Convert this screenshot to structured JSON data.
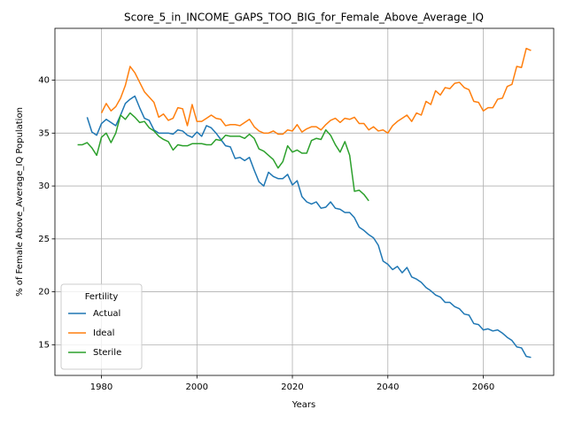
{
  "chart_data": {
    "type": "line",
    "title": "Score_5_in_INCOME_GAPS_TOO_BIG_for_Female_Above_Average_IQ",
    "x_label": "Years",
    "y_label": "% of Female Above_Average_IQ Population",
    "x": [
      1975,
      1976,
      1977,
      1978,
      1979,
      1980,
      1981,
      1982,
      1983,
      1984,
      1985,
      1986,
      1987,
      1988,
      1989,
      1990,
      1991,
      1992,
      1993,
      1994,
      1995,
      1996,
      1997,
      1998,
      1999,
      2000,
      2001,
      2002,
      2003,
      2004,
      2005,
      2006,
      2007,
      2008,
      2009,
      2010,
      2011,
      2012,
      2013,
      2014,
      2015,
      2016,
      2017,
      2018,
      2019,
      2020,
      2021,
      2022,
      2023,
      2024,
      2025,
      2026,
      2027,
      2028,
      2029,
      2030,
      2031,
      2032,
      2033,
      2034,
      2035,
      2036,
      2037,
      2038,
      2039,
      2040,
      2041,
      2042,
      2043,
      2044,
      2045,
      2046,
      2047,
      2048,
      2049,
      2050,
      2051,
      2052,
      2053,
      2054,
      2055,
      2056,
      2057,
      2058,
      2059,
      2060,
      2061,
      2062,
      2063,
      2064,
      2065,
      2066,
      2067,
      2068,
      2069,
      2070
    ],
    "series": [
      {
        "name": "Actual",
        "color": "#1f77b4",
        "values": [
          null,
          null,
          36.5,
          35.1,
          34.8,
          35.9,
          36.3,
          36.0,
          35.7,
          36.7,
          37.8,
          38.2,
          38.5,
          37.4,
          36.4,
          36.2,
          35.3,
          35.0,
          35.0,
          35.0,
          34.9,
          35.3,
          35.2,
          34.8,
          34.6,
          35.1,
          34.7,
          35.7,
          35.5,
          35.0,
          34.4,
          33.8,
          33.7,
          32.6,
          32.7,
          32.4,
          32.7,
          31.5,
          30.4,
          30.0,
          31.3,
          30.9,
          30.7,
          30.7,
          31.1,
          30.1,
          30.5,
          29.0,
          28.5,
          28.3,
          28.5,
          27.9,
          28.0,
          28.5,
          27.9,
          27.8,
          27.5,
          27.5,
          27.0,
          26.1,
          25.8,
          25.4,
          25.1,
          24.4,
          22.9,
          22.6,
          22.1,
          22.4,
          21.8,
          22.3,
          21.4,
          21.2,
          20.9,
          20.4,
          20.1,
          19.7,
          19.5,
          19.0,
          19.0,
          18.6,
          18.4,
          17.9,
          17.8,
          17.0,
          16.9,
          16.4,
          16.5,
          16.3,
          16.4,
          16.1,
          15.7,
          15.4,
          14.8,
          14.7,
          13.9,
          13.8
        ]
      },
      {
        "name": "Ideal",
        "color": "#ff7f0e",
        "values": [
          null,
          null,
          null,
          null,
          null,
          36.9,
          37.8,
          37.1,
          37.5,
          38.3,
          39.5,
          41.3,
          40.7,
          39.8,
          38.9,
          38.4,
          37.9,
          36.5,
          36.8,
          36.2,
          36.4,
          37.4,
          37.3,
          35.7,
          37.7,
          36.1,
          36.1,
          36.4,
          36.7,
          36.4,
          36.3,
          35.7,
          35.8,
          35.8,
          35.7,
          36.0,
          36.3,
          35.6,
          35.2,
          35.0,
          35.0,
          35.2,
          34.9,
          34.9,
          35.3,
          35.2,
          35.8,
          35.1,
          35.4,
          35.6,
          35.6,
          35.3,
          35.8,
          36.2,
          36.4,
          36.0,
          36.4,
          36.3,
          36.5,
          35.9,
          35.9,
          35.3,
          35.6,
          35.2,
          35.3,
          35.0,
          35.7,
          36.1,
          36.4,
          36.7,
          36.1,
          36.9,
          36.7,
          38.0,
          37.7,
          39.0,
          38.6,
          39.3,
          39.2,
          39.7,
          39.8,
          39.3,
          39.1,
          38.0,
          37.9,
          37.1,
          37.4,
          37.4,
          38.2,
          38.3,
          39.4,
          39.6,
          41.3,
          41.2,
          43.0,
          42.8
        ]
      },
      {
        "name": "Sterile",
        "color": "#2ca02c",
        "values": [
          33.9,
          33.9,
          34.1,
          33.6,
          32.9,
          34.6,
          35.0,
          34.1,
          35.0,
          36.7,
          36.3,
          36.9,
          36.5,
          36.0,
          36.1,
          35.5,
          35.2,
          34.7,
          34.4,
          34.2,
          33.4,
          33.9,
          33.8,
          33.8,
          34.0,
          34.0,
          34.0,
          33.9,
          33.9,
          34.4,
          34.3,
          34.8,
          34.7,
          34.7,
          34.7,
          34.5,
          34.9,
          34.5,
          33.5,
          33.3,
          32.9,
          32.5,
          31.7,
          32.3,
          33.8,
          33.2,
          33.4,
          33.1,
          33.1,
          34.3,
          34.5,
          34.4,
          35.3,
          34.8,
          33.9,
          33.2,
          34.2,
          32.9,
          29.5,
          29.6,
          29.2,
          28.6,
          null,
          null,
          null,
          null,
          null,
          null,
          null,
          null,
          null,
          null,
          null,
          null,
          null,
          null,
          null,
          null,
          null,
          null,
          null,
          null,
          null,
          null,
          null,
          null,
          null,
          null,
          null,
          null,
          null,
          null,
          null,
          null,
          null,
          null
        ]
      }
    ],
    "xlim": [
      1970.25,
      2074.75
    ],
    "ylim": [
      12.1,
      44.9
    ],
    "xticks": [
      1980,
      2000,
      2020,
      2040,
      2060
    ],
    "yticks": [
      15,
      20,
      25,
      30,
      35,
      40
    ],
    "grid": true,
    "legend_title": "Fertility",
    "legend_position": "lower left"
  }
}
